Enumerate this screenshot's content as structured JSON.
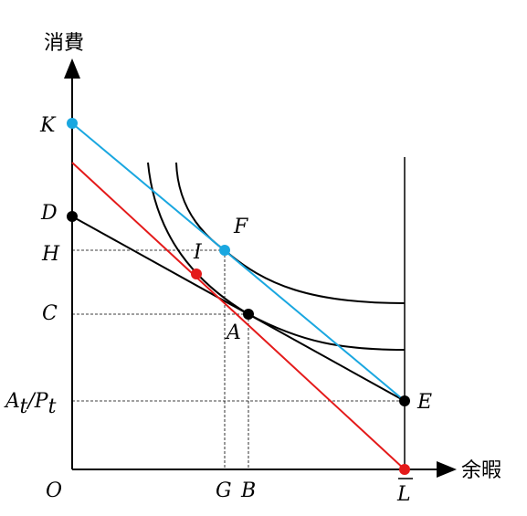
{
  "axes": {
    "y_title": "消費",
    "x_title": "余暇",
    "origin": "O"
  },
  "y_labels": {
    "K": "K",
    "D": "D",
    "H": "H",
    "C": "C",
    "AtPt_A": "A",
    "AtPt_t1": "t",
    "AtPt_slash": "/",
    "AtPt_P": "P",
    "AtPt_t2": "t"
  },
  "x_labels": {
    "G": "G",
    "B": "B",
    "L": "L"
  },
  "points": {
    "F": "F",
    "I": "I",
    "A": "A",
    "E": "E"
  },
  "colors": {
    "blue_line": "#1aa7e0",
    "red_line": "#e41a1a",
    "black": "#000000"
  }
}
